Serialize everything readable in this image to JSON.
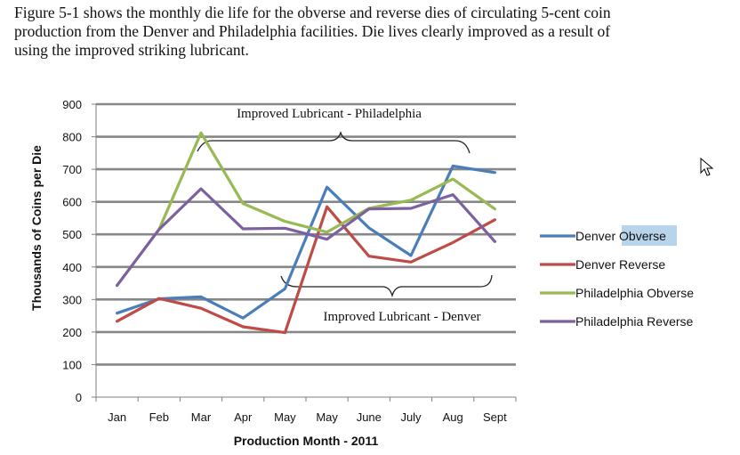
{
  "paragraph": {
    "line1": "Figure 5-1 shows the monthly die life for the obverse and reverse dies of circulating 5-cent coin",
    "line2": "production from the Denver and Philadelphia facilities.  Die lives clearly improved as a result of",
    "line3": "using the improved striking lubricant."
  },
  "chart_data": {
    "type": "line",
    "title": "",
    "xlabel": "Production Month - 2011",
    "ylabel": "Thousands of Coins per Die",
    "ylim": [
      0,
      900
    ],
    "yticks": [
      "0",
      "100",
      "200",
      "300",
      "400",
      "500",
      "600",
      "700",
      "800",
      "900"
    ],
    "categories": [
      "Jan",
      "Feb",
      "Mar",
      "Apr",
      "May",
      "May",
      "June",
      "July",
      "Aug",
      "Sept"
    ],
    "series": [
      {
        "name": "Denver Obverse",
        "color": "#4a7ebb",
        "values": [
          258,
          302,
          308,
          243,
          333,
          645,
          520,
          435,
          710,
          690
        ]
      },
      {
        "name": "Denver Reverse",
        "color": "#be4b48",
        "values": [
          233,
          303,
          273,
          216,
          198,
          585,
          433,
          415,
          475,
          545
        ]
      },
      {
        "name": "Philadelphia Obverse",
        "color": "#98b954",
        "values": [
          343,
          515,
          812,
          595,
          540,
          507,
          580,
          605,
          670,
          578
        ]
      },
      {
        "name": "Philadelphia Reverse",
        "color": "#7d60a0",
        "values": [
          343,
          515,
          640,
          517,
          519,
          485,
          578,
          580,
          622,
          478
        ]
      }
    ],
    "annotations": {
      "philadelphia": "Improved Lubricant - Philadelphia",
      "denver": "Improved Lubricant - Denver"
    },
    "legend_position": "right",
    "grid": true
  }
}
